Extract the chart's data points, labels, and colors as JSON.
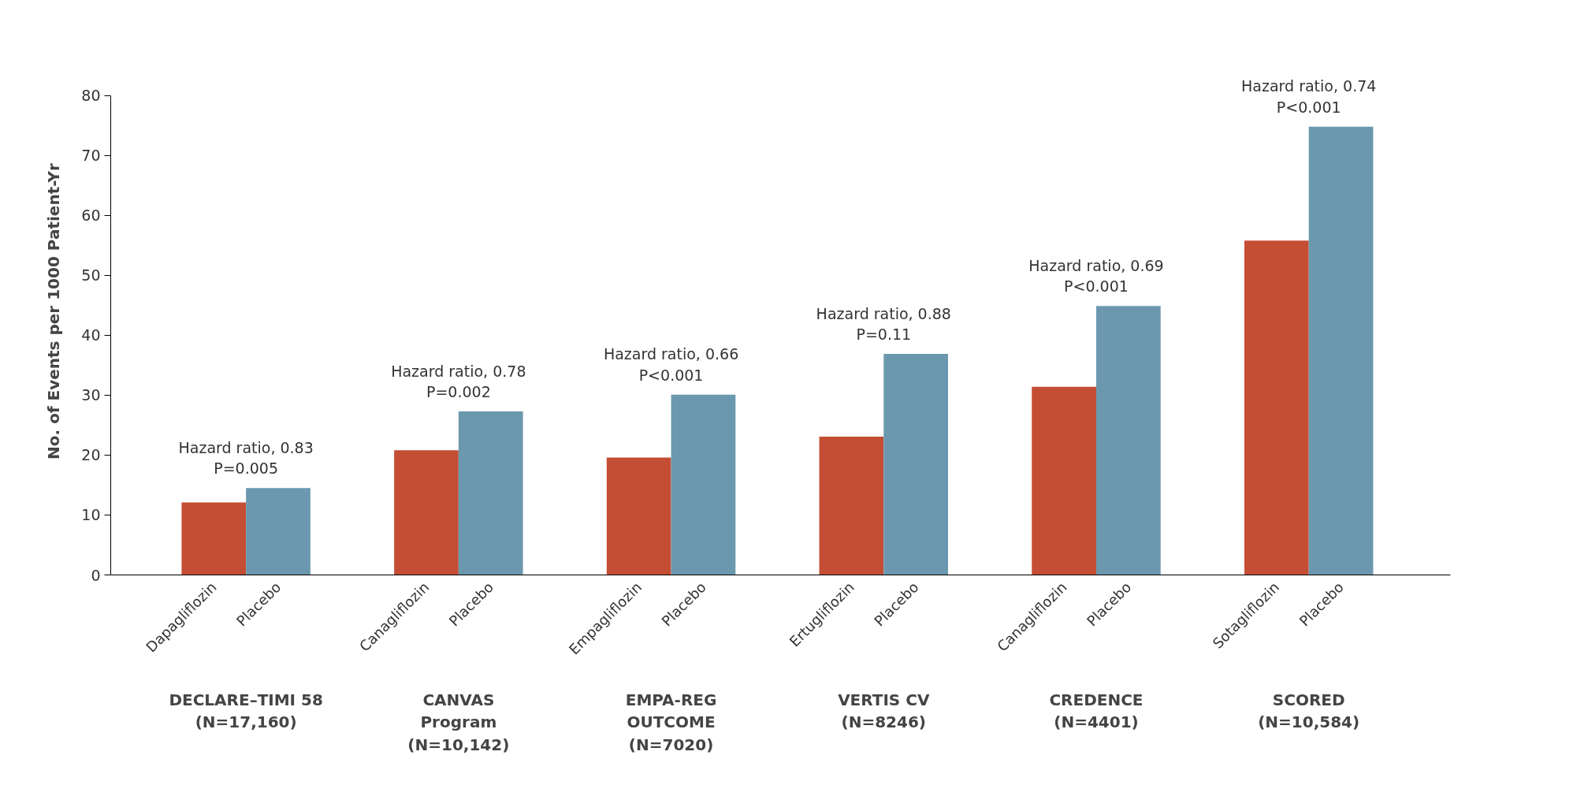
{
  "chart_data": {
    "type": "bar",
    "ylabel": "No. of Events per 1000 Patient-Yr",
    "categories": [
      "Dapagliflozin",
      "Placebo",
      "Canagliflozin",
      "Placebo",
      "Empagliflozin",
      "Placebo",
      "Ertugliflozin",
      "Placebo",
      "Canagliflozin",
      "Placebo",
      "Sotagliflozin",
      "Placebo"
    ],
    "values": [
      12.1,
      14.5,
      20.8,
      27.3,
      19.6,
      30.1,
      23.1,
      36.9,
      31.4,
      44.9,
      55.8,
      74.8
    ],
    "colors": [
      "#c44e34",
      "#6b98ae",
      "#c44e34",
      "#6b98ae",
      "#c44e34",
      "#6b98ae",
      "#c44e34",
      "#6b98ae",
      "#c44e34",
      "#6b98ae",
      "#c44e34",
      "#6b98ae"
    ],
    "ylim": [
      0,
      80
    ],
    "yticks": [
      0,
      10,
      20,
      30,
      40,
      50,
      60,
      70,
      80
    ],
    "grid": false,
    "annotations": [
      "Hazard ratio, 0.83\nP=0.005",
      "Hazard ratio, 0.78\nP=0.002",
      "Hazard ratio, 0.66\nP<0.001",
      "Hazard ratio, 0.88\nP=0.11",
      "Hazard ratio, 0.69\nP<0.001",
      "Hazard ratio, 0.74\nP<0.001",
      "DECLARE–TIMI 58\n(N=17,160)",
      "CANVAS\nProgram\n(N=10,142)",
      "EMPA-REG\nOUTCOME\n(N=7020)",
      "VERTIS CV\n(N=8246)",
      "CREDENCE\n(N=4401)",
      "SCORED\n(N=10,584)"
    ]
  }
}
